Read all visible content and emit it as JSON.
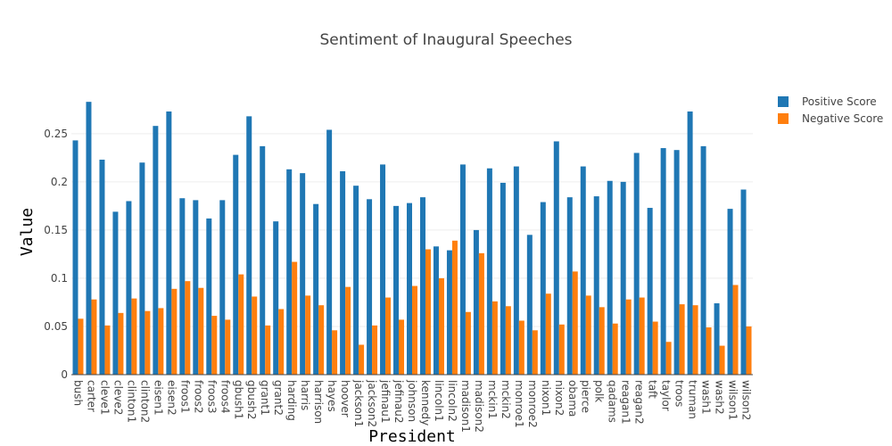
{
  "chart_data": {
    "type": "bar",
    "title": "Sentiment of Inaugural Speeches",
    "xlabel": "President",
    "ylabel": "Value",
    "ylim": [
      0,
      0.285
    ],
    "yticks": [
      0,
      0.05,
      0.1,
      0.15,
      0.2,
      0.25
    ],
    "ytick_labels": [
      "0",
      "0.05",
      "0.1",
      "0.15",
      "0.2",
      "0.25"
    ],
    "grid": true,
    "legend_position": "top-right",
    "categories": [
      "bush",
      "carter",
      "cleve1",
      "cleve2",
      "clinton1",
      "clinton2",
      "eisen1",
      "eisen2",
      "froos1",
      "froos2",
      "froos3",
      "froos4",
      "gbush1",
      "gbush2",
      "grant1",
      "grant2",
      "harding",
      "harris",
      "harrison",
      "hayes",
      "hoover",
      "jackson1",
      "jackson2",
      "jefinau1",
      "jefinau2",
      "johnson",
      "kennedy",
      "lincoln1",
      "lincoln2",
      "madison1",
      "madison2",
      "mckin1",
      "mckin2",
      "monroe1",
      "monroe2",
      "nixon1",
      "nixon2",
      "obama",
      "pierce",
      "polk",
      "qadams",
      "reagan1",
      "reagan2",
      "taft",
      "taylor",
      "troos",
      "truman",
      "wash1",
      "wash2",
      "wilson1",
      "wilson2"
    ],
    "series": [
      {
        "name": "Positive Score",
        "color": "#1f77b4",
        "values": [
          0.243,
          0.283,
          0.223,
          0.169,
          0.18,
          0.22,
          0.258,
          0.273,
          0.183,
          0.181,
          0.162,
          0.181,
          0.228,
          0.268,
          0.237,
          0.159,
          0.213,
          0.209,
          0.177,
          0.254,
          0.211,
          0.196,
          0.182,
          0.218,
          0.175,
          0.178,
          0.184,
          0.133,
          0.129,
          0.218,
          0.15,
          0.214,
          0.199,
          0.216,
          0.145,
          0.179,
          0.242,
          0.184,
          0.216,
          0.185,
          0.201,
          0.2,
          0.23,
          0.173,
          0.235,
          0.233,
          0.273,
          0.237,
          0.074,
          0.172,
          0.192
        ]
      },
      {
        "name": "Negative Score",
        "color": "#ff7f0e",
        "values": [
          0.058,
          0.078,
          0.051,
          0.064,
          0.079,
          0.066,
          0.069,
          0.089,
          0.097,
          0.09,
          0.061,
          0.057,
          0.104,
          0.081,
          0.051,
          0.068,
          0.117,
          0.082,
          0.072,
          0.046,
          0.091,
          0.031,
          0.051,
          0.08,
          0.057,
          0.092,
          0.13,
          0.1,
          0.139,
          0.065,
          0.126,
          0.076,
          0.071,
          0.056,
          0.046,
          0.084,
          0.052,
          0.107,
          0.082,
          0.07,
          0.053,
          0.078,
          0.08,
          0.055,
          0.034,
          0.073,
          0.072,
          0.049,
          0.03,
          0.093,
          0.05
        ]
      }
    ]
  }
}
